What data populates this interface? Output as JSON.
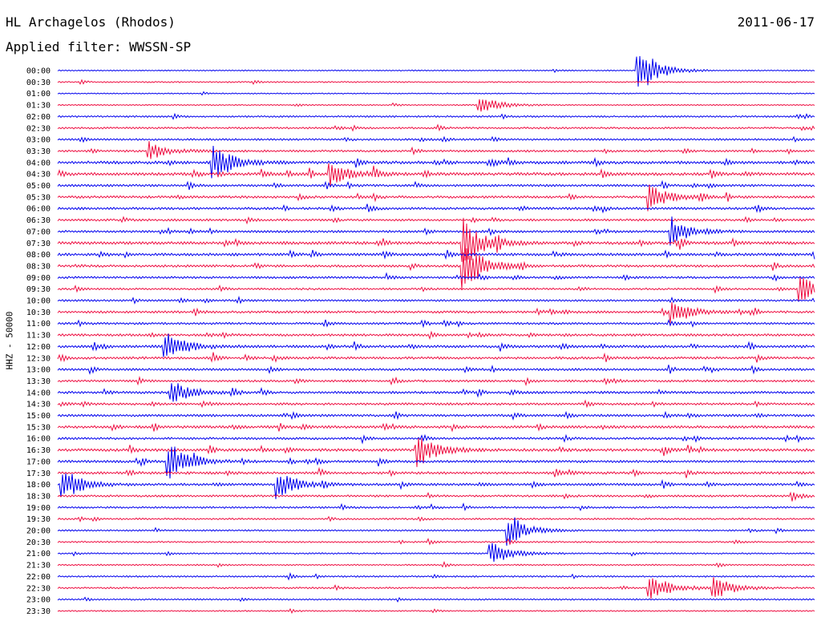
{
  "header": {
    "station": "HL Archagelos (Rhodos)",
    "date": "2011-06-17",
    "filter": "Applied filter: WWSSN-SP"
  },
  "chart_data": {
    "type": "line",
    "title": "HL Archagelos (Rhodos)",
    "ylabel": "HHZ - 50000",
    "xlabel": "",
    "y_tick_labels": [
      "00:00",
      "00:30",
      "01:00",
      "01:30",
      "02:00",
      "02:30",
      "03:00",
      "03:30",
      "04:00",
      "04:30",
      "05:00",
      "05:30",
      "06:00",
      "06:30",
      "07:00",
      "07:30",
      "08:00",
      "08:30",
      "09:00",
      "09:30",
      "10:00",
      "10:30",
      "11:00",
      "11:30",
      "12:00",
      "12:30",
      "13:00",
      "13:30",
      "14:00",
      "14:30",
      "15:00",
      "15:30",
      "16:00",
      "16:30",
      "17:00",
      "17:30",
      "18:00",
      "18:30",
      "19:00",
      "19:30",
      "20:00",
      "20:30",
      "21:00",
      "21:30",
      "22:00",
      "22:30",
      "23:00",
      "23:30"
    ],
    "trace_colors": [
      "#0000ee",
      "#ee1144"
    ],
    "trace_activity": [
      0.05,
      0.15,
      0.05,
      0.12,
      0.3,
      0.35,
      0.4,
      0.45,
      0.8,
      0.85,
      0.55,
      0.6,
      0.6,
      0.5,
      0.55,
      0.8,
      0.7,
      0.6,
      0.5,
      0.4,
      0.45,
      0.55,
      0.5,
      0.6,
      0.7,
      0.6,
      0.55,
      0.5,
      0.6,
      0.55,
      0.6,
      0.7,
      0.55,
      0.75,
      0.6,
      0.65,
      0.6,
      0.45,
      0.35,
      0.3,
      0.25,
      0.25,
      0.2,
      0.2,
      0.25,
      0.3,
      0.2,
      0.15
    ],
    "events": [
      {
        "trace": 0,
        "x": 0.765,
        "amp": 1.0
      },
      {
        "trace": 3,
        "x": 0.555,
        "amp": 0.35
      },
      {
        "trace": 7,
        "x": 0.12,
        "amp": 0.3
      },
      {
        "trace": 8,
        "x": 0.205,
        "amp": 0.6
      },
      {
        "trace": 9,
        "x": 0.36,
        "amp": 0.4
      },
      {
        "trace": 11,
        "x": 0.78,
        "amp": 0.45
      },
      {
        "trace": 14,
        "x": 0.81,
        "amp": 0.5
      },
      {
        "trace": 15,
        "x": 0.535,
        "amp": 0.9
      },
      {
        "trace": 17,
        "x": 0.535,
        "amp": 1.0
      },
      {
        "trace": 19,
        "x": 0.98,
        "amp": 0.5
      },
      {
        "trace": 21,
        "x": 0.81,
        "amp": 0.5
      },
      {
        "trace": 24,
        "x": 0.14,
        "amp": 0.55
      },
      {
        "trace": 28,
        "x": 0.15,
        "amp": 0.45
      },
      {
        "trace": 33,
        "x": 0.475,
        "amp": 0.6
      },
      {
        "trace": 34,
        "x": 0.145,
        "amp": 0.7
      },
      {
        "trace": 36,
        "x": 0.005,
        "amp": 0.6
      },
      {
        "trace": 36,
        "x": 0.29,
        "amp": 0.5
      },
      {
        "trace": 40,
        "x": 0.595,
        "amp": 0.5
      },
      {
        "trace": 42,
        "x": 0.57,
        "amp": 0.45
      },
      {
        "trace": 45,
        "x": 0.78,
        "amp": 0.4
      },
      {
        "trace": 45,
        "x": 0.865,
        "amp": 0.45
      }
    ]
  }
}
